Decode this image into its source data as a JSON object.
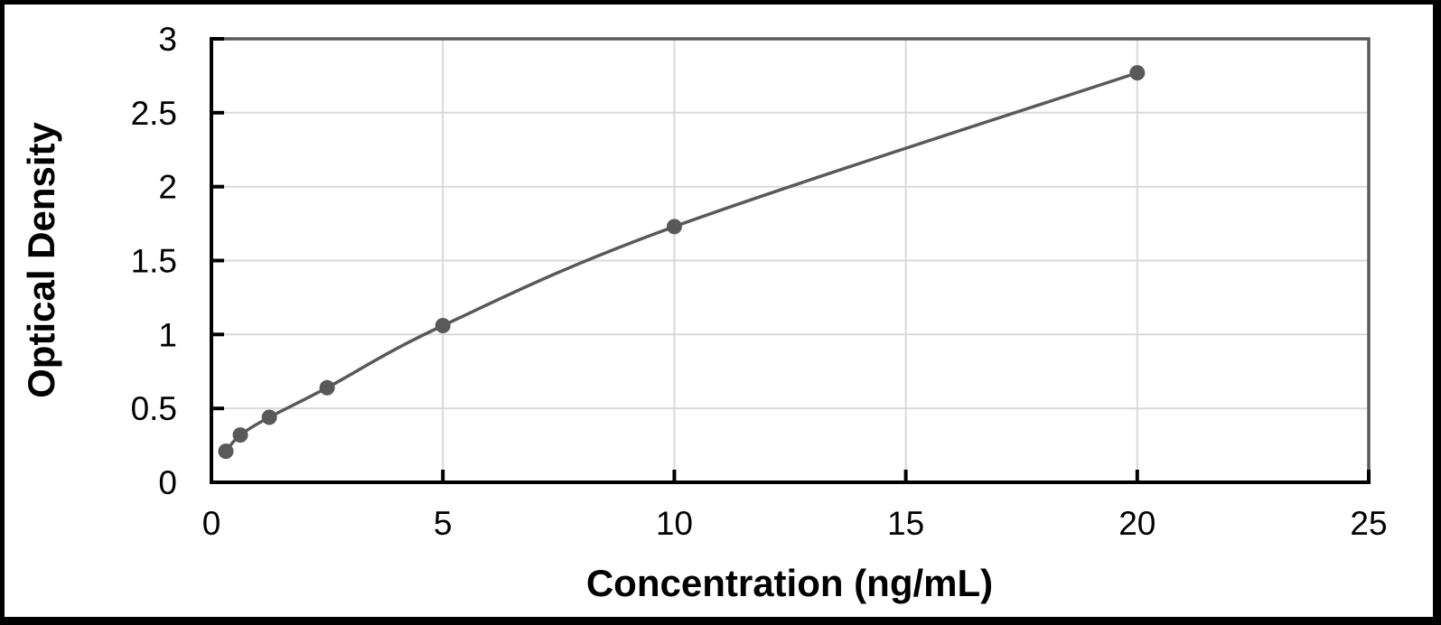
{
  "chart_data": {
    "type": "line",
    "title": "",
    "xlabel": "Concentration (ng/mL)",
    "ylabel": "Optical Density",
    "xlim": [
      0,
      25
    ],
    "ylim": [
      0,
      3
    ],
    "xticks": [
      0,
      5,
      10,
      15,
      20,
      25
    ],
    "yticks": [
      0,
      0.5,
      1,
      1.5,
      2,
      2.5,
      3
    ],
    "grid": true,
    "legend": false,
    "series": [
      {
        "marker": "circle",
        "x": [
          0.313,
          0.625,
          1.25,
          2.5,
          5,
          10,
          20
        ],
        "y": [
          0.21,
          0.32,
          0.44,
          0.64,
          1.06,
          1.73,
          2.77
        ]
      }
    ],
    "colors": {
      "line": "#595959",
      "marker": "#595959",
      "gridline": "#d9d9d9",
      "axis": "#000000",
      "frame": "#595959",
      "text": "#000000",
      "background": "#ffffff",
      "border": "#000000"
    }
  }
}
